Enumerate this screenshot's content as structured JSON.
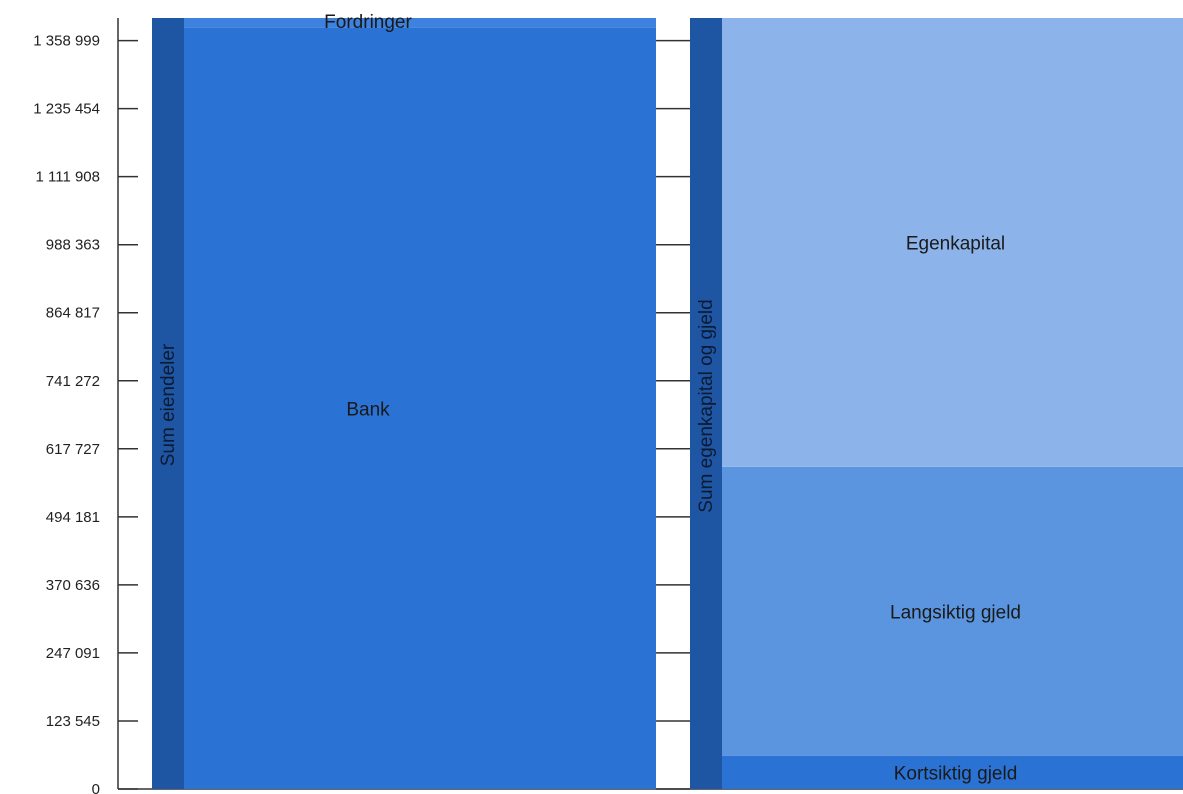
{
  "chart_data": {
    "type": "bar",
    "stacked": true,
    "ylim": [
      0,
      1400000
    ],
    "y_ticks": [
      "0",
      "123 545",
      "247 091",
      "370 636",
      "494 181",
      "617 727",
      "741 272",
      "864 817",
      "988 363",
      "1 111 908",
      "1 235 454",
      "1 358 999"
    ],
    "y_tick_values": [
      0,
      123545,
      247091,
      370636,
      494181,
      617727,
      741272,
      864817,
      988363,
      1111908,
      1235454,
      1358999
    ],
    "grid": false,
    "columns": [
      {
        "total_label": "Sum eiendeler",
        "total_value": 1400000,
        "total_color": "#1f56a3",
        "segments": [
          {
            "name": "Bank",
            "value": 1382000,
            "color": "#2a72d4"
          },
          {
            "name": "Fordringer",
            "value": 18000,
            "color": "#3d82de"
          }
        ]
      },
      {
        "total_label": "Sum egenkapital og gjeld",
        "total_value": 1400000,
        "total_color": "#1f56a3",
        "segments": [
          {
            "name": "Kortsiktig gjeld",
            "value": 60000,
            "color": "#2a72d4"
          },
          {
            "name": "Langsiktig gjeld",
            "value": 525000,
            "color": "#5b95e0"
          },
          {
            "name": "Egenkapital",
            "value": 815000,
            "color": "#8db4ea"
          }
        ]
      }
    ]
  }
}
